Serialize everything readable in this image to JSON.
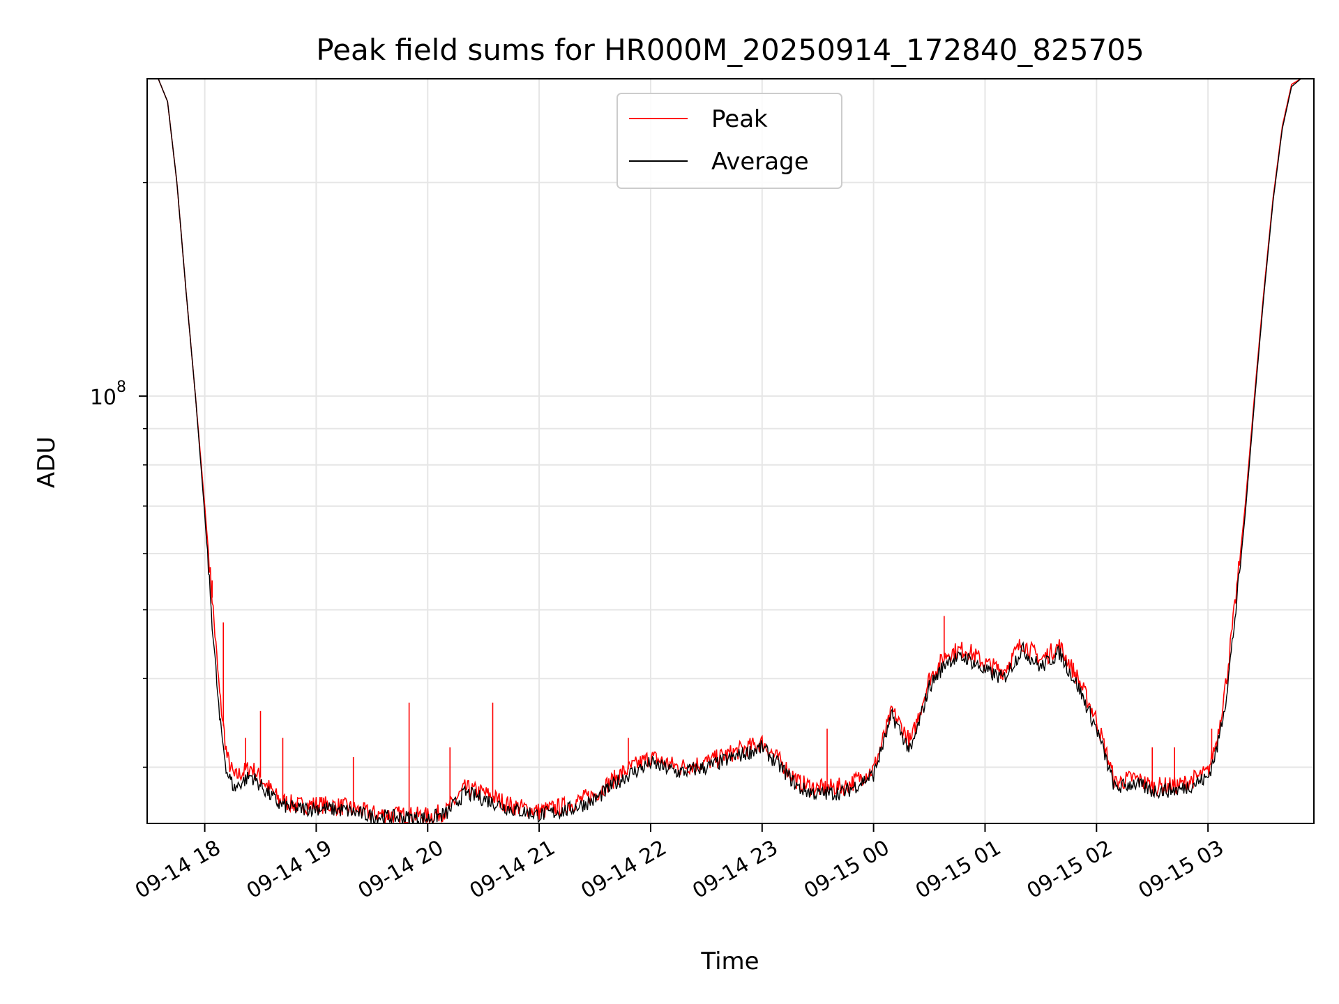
{
  "chart_data": {
    "type": "line",
    "title": "Peak field sums for HR000M_20250914_172840_825705",
    "xlabel": "Time",
    "ylabel": "ADU",
    "y_scale": "log",
    "grid": true,
    "legend_position": "top-center",
    "x_range": [
      "09-14 17:29",
      "09-15 03:57"
    ],
    "ylim": [
      25000000,
      280000000
    ],
    "x_ticks": [
      "09-14 18",
      "09-14 19",
      "09-14 20",
      "09-14 21",
      "09-14 22",
      "09-14 23",
      "09-15 00",
      "09-15 01",
      "09-15 02",
      "09-15 03"
    ],
    "y_tick_major": [
      {
        "value": 100000000,
        "base": "10",
        "exponent": "8"
      }
    ],
    "y_tick_minor": [
      30000000,
      40000000,
      50000000,
      60000000,
      70000000,
      80000000,
      90000000,
      200000000
    ],
    "series": [
      {
        "name": "Peak",
        "color": "#ff0000",
        "x": [
          "09-14 17:29",
          "09-14 17:35",
          "09-14 17:40",
          "09-14 17:45",
          "09-14 17:50",
          "09-14 17:55",
          "09-14 18:00",
          "09-14 18:04",
          "09-14 18:08",
          "09-14 18:12",
          "09-14 18:16",
          "09-14 18:20",
          "09-14 18:25",
          "09-14 18:30",
          "09-14 18:40",
          "09-14 18:50",
          "09-14 19:00",
          "09-14 19:15",
          "09-14 19:30",
          "09-14 19:45",
          "09-14 20:00",
          "09-14 20:10",
          "09-14 20:20",
          "09-14 20:30",
          "09-14 20:45",
          "09-14 21:00",
          "09-14 21:15",
          "09-14 21:30",
          "09-14 21:45",
          "09-14 22:00",
          "09-14 22:15",
          "09-14 22:30",
          "09-14 22:45",
          "09-14 23:00",
          "09-14 23:10",
          "09-14 23:20",
          "09-14 23:30",
          "09-14 23:45",
          "09-15 00:00",
          "09-15 00:10",
          "09-15 00:20",
          "09-15 00:30",
          "09-15 00:40",
          "09-15 00:50",
          "09-15 01:00",
          "09-15 01:10",
          "09-15 01:20",
          "09-15 01:30",
          "09-15 01:40",
          "09-15 01:50",
          "09-15 02:00",
          "09-15 02:10",
          "09-15 02:20",
          "09-15 02:30",
          "09-15 02:45",
          "09-15 03:00",
          "09-15 03:05",
          "09-15 03:10",
          "09-15 03:15",
          "09-15 03:20",
          "09-15 03:25",
          "09-15 03:30",
          "09-15 03:35",
          "09-15 03:40",
          "09-15 03:45",
          "09-15 03:50",
          "09-15 03:57"
        ],
        "values": [
          280000000,
          280000000,
          260000000,
          200000000,
          140000000,
          100000000,
          70000000,
          52000000,
          38000000,
          31000000,
          29000000,
          29500000,
          30000000,
          29000000,
          27000000,
          26500000,
          26600000,
          26400000,
          25800000,
          25700000,
          25600000,
          26000000,
          28000000,
          27600000,
          26500000,
          26000000,
          26500000,
          27500000,
          29500000,
          31000000,
          30000000,
          30500000,
          31500000,
          32500000,
          30500000,
          28500000,
          28000000,
          28200000,
          29800000,
          36000000,
          32500000,
          40000000,
          43500000,
          44000000,
          42000000,
          41000000,
          45000000,
          42500000,
          44500000,
          40000000,
          35000000,
          28500000,
          29000000,
          28200000,
          28300000,
          29500000,
          33000000,
          40000000,
          52000000,
          70000000,
          100000000,
          140000000,
          190000000,
          240000000,
          275000000,
          280000000,
          280000000
        ]
      },
      {
        "name": "Average",
        "color": "#000000",
        "x": [
          "09-14 17:29",
          "09-14 17:35",
          "09-14 17:40",
          "09-14 17:45",
          "09-14 17:50",
          "09-14 17:55",
          "09-14 18:00",
          "09-14 18:04",
          "09-14 18:08",
          "09-14 18:12",
          "09-14 18:16",
          "09-14 18:20",
          "09-14 18:25",
          "09-14 18:30",
          "09-14 18:40",
          "09-14 18:50",
          "09-14 19:00",
          "09-14 19:15",
          "09-14 19:30",
          "09-14 19:45",
          "09-14 20:00",
          "09-14 20:10",
          "09-14 20:20",
          "09-14 20:30",
          "09-14 20:45",
          "09-14 21:00",
          "09-14 21:15",
          "09-14 21:30",
          "09-14 21:45",
          "09-14 22:00",
          "09-14 22:15",
          "09-14 22:30",
          "09-14 22:45",
          "09-14 23:00",
          "09-14 23:10",
          "09-14 23:20",
          "09-14 23:30",
          "09-14 23:45",
          "09-15 00:00",
          "09-15 00:10",
          "09-15 00:20",
          "09-15 00:30",
          "09-15 00:40",
          "09-15 00:50",
          "09-15 01:00",
          "09-15 01:10",
          "09-15 01:20",
          "09-15 01:30",
          "09-15 01:40",
          "09-15 01:50",
          "09-15 02:00",
          "09-15 02:10",
          "09-15 02:20",
          "09-15 02:30",
          "09-15 02:45",
          "09-15 03:00",
          "09-15 03:05",
          "09-15 03:10",
          "09-15 03:15",
          "09-15 03:20",
          "09-15 03:25",
          "09-15 03:30",
          "09-15 03:35",
          "09-15 03:40",
          "09-15 03:45",
          "09-15 03:50",
          "09-15 03:57"
        ],
        "values": [
          280000000,
          280000000,
          260000000,
          200000000,
          140000000,
          100000000,
          68000000,
          48000000,
          35000000,
          29500000,
          28000000,
          28600000,
          29200000,
          28300000,
          26600000,
          26200000,
          26300000,
          26100000,
          25600000,
          25500000,
          25400000,
          25800000,
          27600000,
          27100000,
          26200000,
          25700000,
          26100000,
          27000000,
          29000000,
          30400000,
          29500000,
          30000000,
          31000000,
          32000000,
          30000000,
          28000000,
          27500000,
          27700000,
          29300000,
          35500000,
          31500000,
          39000000,
          42500000,
          42800000,
          41000000,
          40000000,
          44000000,
          41500000,
          43500000,
          39000000,
          34000000,
          28000000,
          28500000,
          27800000,
          27900000,
          29000000,
          32000000,
          38000000,
          50000000,
          68000000,
          98000000,
          138000000,
          188000000,
          238000000,
          273000000,
          280000000,
          280000000
        ]
      }
    ],
    "spikes": {
      "Peak": [
        [
          "09-14 18:04",
          55000000
        ],
        [
          "09-14 18:10",
          48000000
        ],
        [
          "09-14 18:22",
          33000000
        ],
        [
          "09-14 18:30",
          36000000
        ],
        [
          "09-14 18:42",
          33000000
        ],
        [
          "09-14 19:20",
          31000000
        ],
        [
          "09-14 19:50",
          37000000
        ],
        [
          "09-14 20:12",
          32000000
        ],
        [
          "09-14 20:35",
          37000000
        ],
        [
          "09-14 21:48",
          33000000
        ],
        [
          "09-14 23:35",
          34000000
        ],
        [
          "09-15 00:38",
          49000000
        ],
        [
          "09-15 02:30",
          32000000
        ],
        [
          "09-15 02:42",
          32000000
        ],
        [
          "09-15 03:02",
          34000000
        ]
      ],
      "Average": [
        [
          "09-15 00:38",
          42000000
        ]
      ]
    }
  }
}
